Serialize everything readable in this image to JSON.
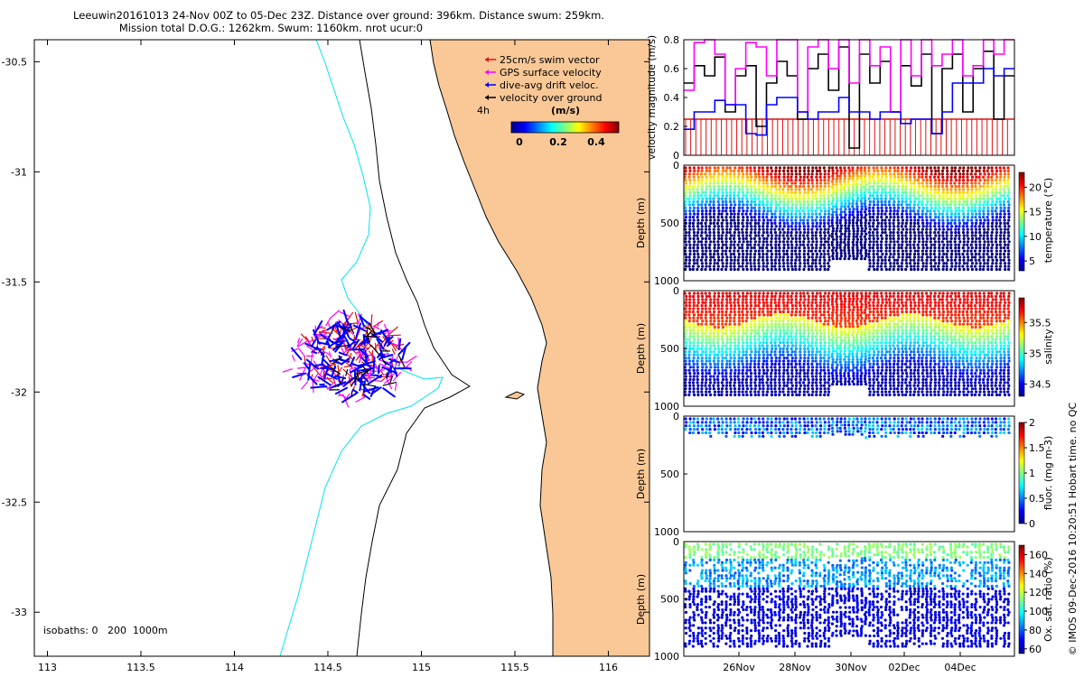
{
  "figure": {
    "title_line1": "Leeuwin20161013 24-Nov 00Z to 05-Dec 23Z. Distance over ground: 396km. Distance swum: 259km.",
    "title_line2": "Mission total D.O.G.: 1262km. Swum: 1160km. nrot ucur:0",
    "footer_vertical": "© IMOS 09-Dec-2016 10:20:51 Hobart time. no QC"
  },
  "colors": {
    "land": "#f9c896",
    "isobath_0": "#000000",
    "isobath_200": "#000000",
    "isobath_1000": "#00e5ee",
    "swim_vector": "#e01010",
    "gps_velocity": "#ff00ff",
    "dive_avg_drift": "#0000ff",
    "velocity_over_ground": "#000000"
  },
  "map": {
    "isobaths_label": "isobaths: 0   200  1000m",
    "vector_label": "4h",
    "colorbar_title": "(m/s)",
    "colorbar_ticks": [
      "0",
      "0.2",
      "0.4"
    ],
    "legend": [
      {
        "label": "25cm/s swim vector",
        "color": "#e01010"
      },
      {
        "label": "GPS surface velocity",
        "color": "#ff00ff"
      },
      {
        "label": "dive-avg drift veloc.",
        "color": "#0000ff"
      },
      {
        "label": "velocity over ground",
        "color": "#000000"
      }
    ]
  },
  "chart_data": [
    {
      "type": "scatter",
      "name": "map",
      "title": "",
      "xlabel": "",
      "ylabel": "",
      "xlim": [
        112.93,
        116.22
      ],
      "ylim": [
        -33.2,
        -30.4
      ],
      "xticks": [
        "113",
        "113.5",
        "114",
        "114.5",
        "115",
        "115.5",
        "116"
      ],
      "yticks": [
        "-30.5",
        "-31",
        "-31.5",
        "-32",
        "-32.5",
        "-33"
      ],
      "glider_region": {
        "lon": [
          114.3,
          114.95
        ],
        "lat": [
          -32.05,
          -31.65
        ]
      }
    },
    {
      "type": "line",
      "name": "velocity",
      "ylabel": "velocity magnitude (m/s)",
      "ylim": [
        0,
        0.8
      ],
      "yticks": [
        "0",
        "0.2",
        "0.4",
        "0.6",
        "0.8"
      ],
      "swim_vector_level": 0.25,
      "series": [
        {
          "name": "velocity over ground",
          "values": [
            0.5,
            0.62,
            0.55,
            0.68,
            0.3,
            0.55,
            0.62,
            0.2,
            0.5,
            0.65,
            0.55,
            0.25,
            0.6,
            0.7,
            0.45,
            0.75,
            0.05,
            0.7,
            0.5,
            0.65,
            0.3,
            0.62,
            0.48,
            0.7,
            0.15,
            0.6,
            0.7,
            0.3,
            0.6,
            0.72,
            0.25,
            0.55
          ]
        },
        {
          "name": "GPS surface velocity",
          "values": [
            0.45,
            0.78,
            0.8,
            0.7,
            0.35,
            0.6,
            0.78,
            0.75,
            0.55,
            0.8,
            0.8,
            0.3,
            0.75,
            0.8,
            0.6,
            0.8,
            0.5,
            0.8,
            0.62,
            0.75,
            0.3,
            0.8,
            0.55,
            0.8,
            0.62,
            0.7,
            0.8,
            0.55,
            0.62,
            0.8,
            0.7,
            0.8
          ]
        },
        {
          "name": "dive-avg drift veloc.",
          "values": [
            0.18,
            0.3,
            0.3,
            0.38,
            0.35,
            0.35,
            0.15,
            0.14,
            0.35,
            0.4,
            0.4,
            0.3,
            0.25,
            0.3,
            0.3,
            0.4,
            0.3,
            0.3,
            0.25,
            0.3,
            0.3,
            0.22,
            0.25,
            0.25,
            0.15,
            0.3,
            0.5,
            0.5,
            0.5,
            0.6,
            0.55,
            0.6
          ]
        }
      ]
    },
    {
      "type": "heatmap",
      "name": "temperature",
      "ylabel": "Depth (m)",
      "colorbar_label": "temperature (°C)",
      "yticks": [
        "0",
        "500",
        "1000"
      ],
      "cbar_ticks": [
        "5",
        "10",
        "15",
        "20"
      ],
      "cbar_range": [
        3,
        23
      ]
    },
    {
      "type": "heatmap",
      "name": "salinity",
      "ylabel": "Depth (m)",
      "colorbar_label": "salinity",
      "yticks": [
        "0",
        "500",
        "1000"
      ],
      "cbar_ticks": [
        "34.5",
        "35",
        "35.5"
      ],
      "cbar_range": [
        34.3,
        35.9
      ]
    },
    {
      "type": "scatter",
      "name": "fluorescence",
      "ylabel": "Depth (m)",
      "colorbar_label": "fluor. (mg m-3)",
      "yticks": [
        "0",
        "500",
        "1000"
      ],
      "cbar_ticks": [
        "0",
        "0.5",
        "1",
        "1.5",
        "2"
      ],
      "cbar_range": [
        0,
        2
      ]
    },
    {
      "type": "scatter",
      "name": "oxygen",
      "ylabel": "Depth (m)",
      "colorbar_label": "Ox. sat. ratio (%)",
      "yticks": [
        "0",
        "500",
        "1000"
      ],
      "cbar_ticks": [
        "60",
        "80",
        "100",
        "120",
        "140",
        "160"
      ],
      "cbar_range": [
        55,
        170
      ],
      "xticks": [
        "26Nov",
        "28Nov",
        "30Nov",
        "02Dec",
        "04Dec"
      ]
    }
  ]
}
